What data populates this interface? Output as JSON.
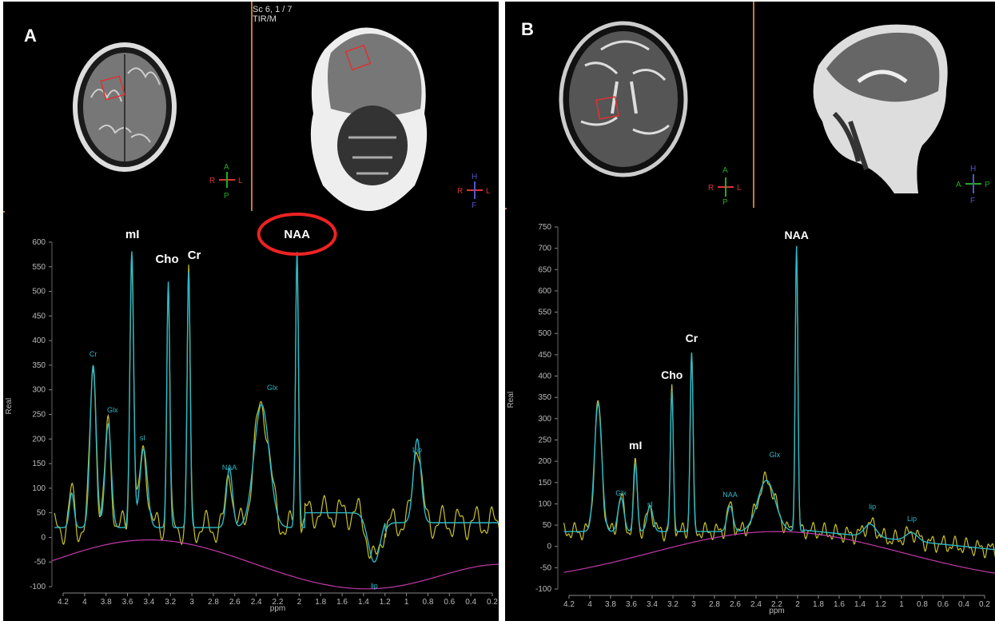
{
  "panelA": {
    "letter": "A",
    "scan_info": [
      "Sc 6, 1 / 7",
      "TIR/M"
    ],
    "orient_axial": {
      "top": "A",
      "bottom": "P",
      "left": "R",
      "right": "L"
    },
    "orient_coronal": {
      "top": "H",
      "bottom": "F",
      "left": "R",
      "right": "L"
    },
    "peak_labels": {
      "mI": "mI",
      "Cho": "Cho",
      "Cr": "Cr",
      "NAA": "NAA"
    },
    "small_labels": [
      "Cr",
      "Glx",
      "sI",
      "NAA",
      "Glx",
      "lip",
      "Lip"
    ],
    "y_axis_label": "Real",
    "x_axis_label": "ppm",
    "y_ticks": [
      "600",
      "550",
      "500",
      "450",
      "400",
      "350",
      "300",
      "250",
      "200",
      "150",
      "100",
      "50",
      "0",
      "-50",
      "-100"
    ],
    "x_ticks": [
      "4.2",
      "4",
      "3.8",
      "3.6",
      "3.4",
      "3.2",
      "3",
      "2.8",
      "2.6",
      "2.4",
      "2.2",
      "2",
      "1.8",
      "1.6",
      "1.4",
      "1.2",
      "1",
      "0.8",
      "0.6",
      "0.4",
      "0.2"
    ]
  },
  "panelB": {
    "letter": "B",
    "orient_axial": {
      "top": "A",
      "bottom": "P",
      "left": "R",
      "right": "L"
    },
    "orient_sagittal": {
      "top": "H",
      "bottom": "F",
      "left": "A",
      "right": "P"
    },
    "peak_labels": {
      "mI": "mI",
      "Cho": "Cho",
      "Cr": "Cr",
      "NAA": "NAA"
    },
    "small_labels": [
      "Glx",
      "sI",
      "NAA",
      "Glx",
      "lip",
      "Lip"
    ],
    "y_axis_label": "Real",
    "x_axis_label": "ppm",
    "y_ticks": [
      "750",
      "700",
      "650",
      "600",
      "550",
      "500",
      "450",
      "400",
      "350",
      "300",
      "250",
      "200",
      "150",
      "100",
      "50",
      "0",
      "-50",
      "-100"
    ],
    "x_ticks": [
      "4.2",
      "4",
      "3.8",
      "3.6",
      "3.4",
      "3.2",
      "3",
      "2.8",
      "2.6",
      "2.4",
      "2.2",
      "2",
      "1.8",
      "1.6",
      "1.4",
      "1.2",
      "1",
      "0.8",
      "0.6",
      "0.4",
      "0.2"
    ]
  },
  "colors": {
    "fit": "#2ab9c9",
    "raw": "#c9c22a",
    "baseline": "#c23aa8",
    "voi": "#d33",
    "highlight": "#e22"
  }
}
